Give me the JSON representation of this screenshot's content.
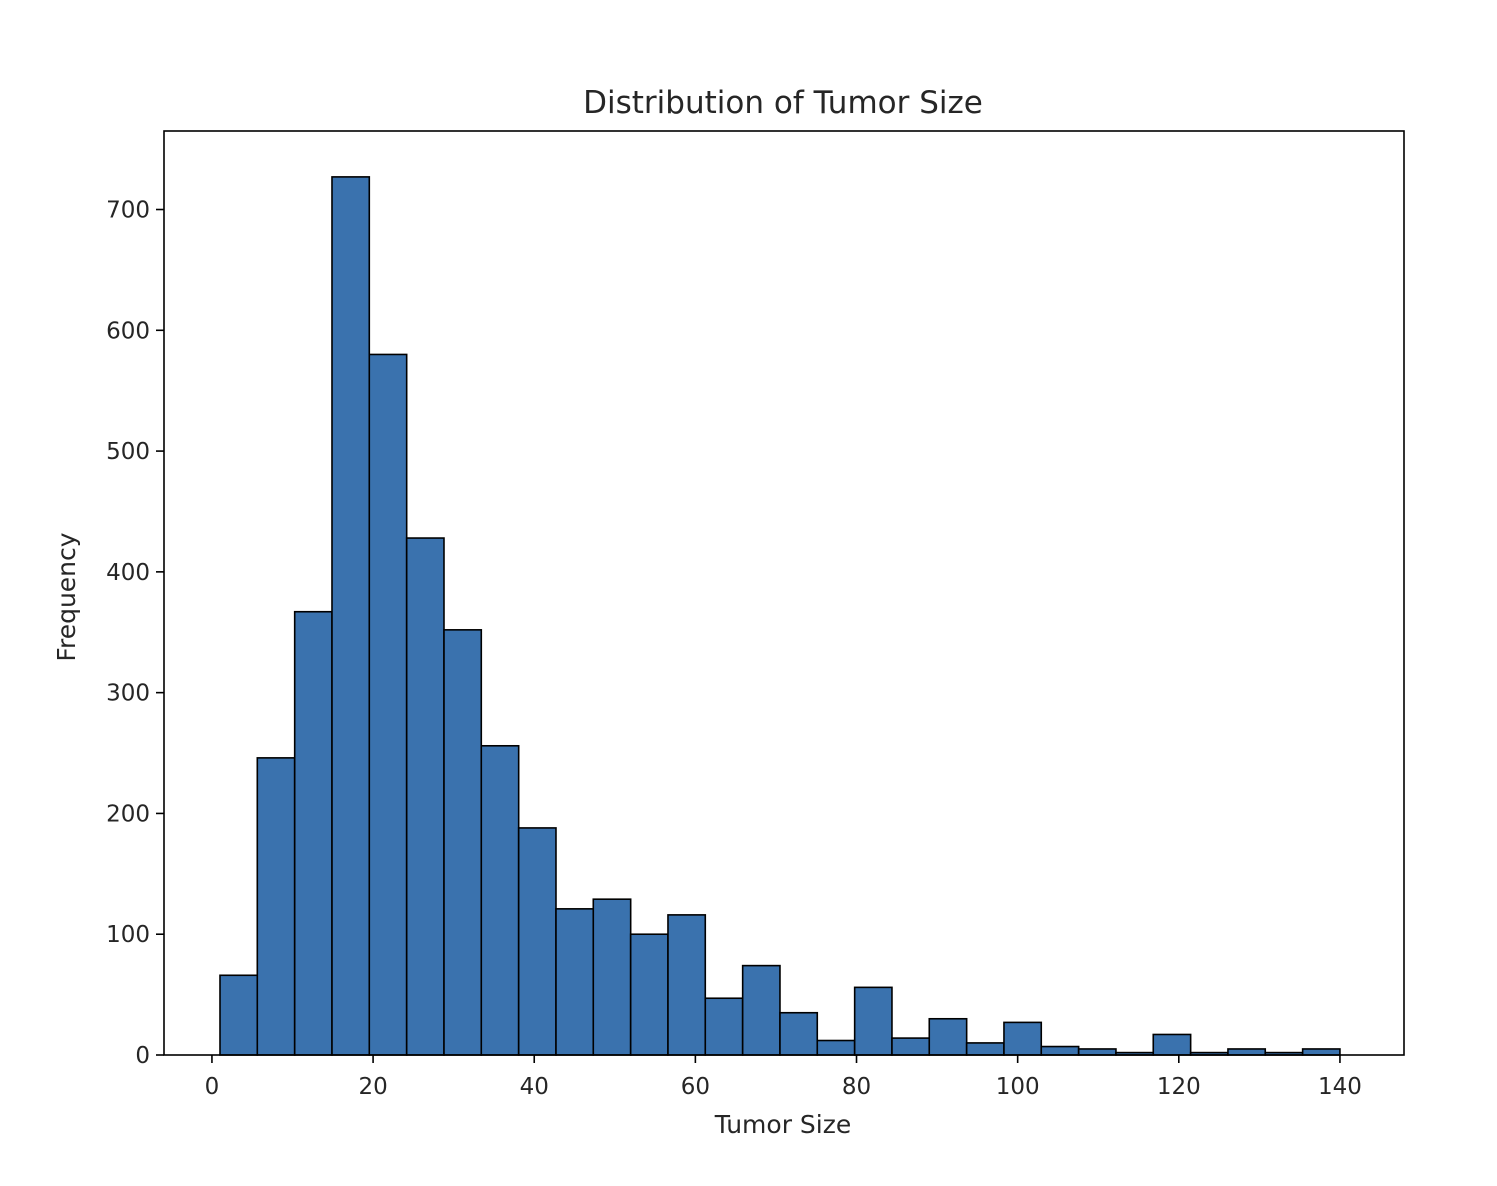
{
  "chart_data": {
    "type": "bar",
    "title": "Distribution of Tumor Size",
    "xlabel": "Tumor Size",
    "ylabel": "Frequency",
    "xlim": [
      -5.95,
      147.95
    ],
    "ylim": [
      0,
      765
    ],
    "xticks": [
      0,
      20,
      40,
      60,
      80,
      100,
      120,
      140
    ],
    "yticks": [
      0,
      100,
      200,
      300,
      400,
      500,
      600,
      700
    ],
    "grid": false,
    "legend": "none",
    "bar_color": "#3a72ae",
    "edge_color": "#000000",
    "bins": [
      {
        "x0": 1.0,
        "x1": 5.63,
        "count": 66
      },
      {
        "x0": 5.63,
        "x1": 10.27,
        "count": 246
      },
      {
        "x0": 10.27,
        "x1": 14.9,
        "count": 367
      },
      {
        "x0": 14.9,
        "x1": 19.53,
        "count": 727
      },
      {
        "x0": 19.53,
        "x1": 24.17,
        "count": 580
      },
      {
        "x0": 24.17,
        "x1": 28.8,
        "count": 428
      },
      {
        "x0": 28.8,
        "x1": 33.43,
        "count": 352
      },
      {
        "x0": 33.43,
        "x1": 38.07,
        "count": 256
      },
      {
        "x0": 38.07,
        "x1": 42.7,
        "count": 188
      },
      {
        "x0": 42.7,
        "x1": 47.33,
        "count": 121
      },
      {
        "x0": 47.33,
        "x1": 51.97,
        "count": 129
      },
      {
        "x0": 51.97,
        "x1": 56.6,
        "count": 100
      },
      {
        "x0": 56.6,
        "x1": 61.23,
        "count": 116
      },
      {
        "x0": 61.23,
        "x1": 65.87,
        "count": 47
      },
      {
        "x0": 65.87,
        "x1": 70.5,
        "count": 74
      },
      {
        "x0": 70.5,
        "x1": 75.13,
        "count": 35
      },
      {
        "x0": 75.13,
        "x1": 79.77,
        "count": 12
      },
      {
        "x0": 79.77,
        "x1": 84.4,
        "count": 56
      },
      {
        "x0": 84.4,
        "x1": 89.03,
        "count": 14
      },
      {
        "x0": 89.03,
        "x1": 93.67,
        "count": 30
      },
      {
        "x0": 93.67,
        "x1": 98.3,
        "count": 10
      },
      {
        "x0": 98.3,
        "x1": 102.93,
        "count": 27
      },
      {
        "x0": 102.93,
        "x1": 107.57,
        "count": 7
      },
      {
        "x0": 107.57,
        "x1": 112.2,
        "count": 5
      },
      {
        "x0": 112.2,
        "x1": 116.83,
        "count": 2
      },
      {
        "x0": 116.83,
        "x1": 121.47,
        "count": 17
      },
      {
        "x0": 121.47,
        "x1": 126.1,
        "count": 2
      },
      {
        "x0": 126.1,
        "x1": 130.73,
        "count": 5
      },
      {
        "x0": 130.73,
        "x1": 135.37,
        "count": 2
      },
      {
        "x0": 135.37,
        "x1": 140.0,
        "count": 5
      }
    ]
  }
}
